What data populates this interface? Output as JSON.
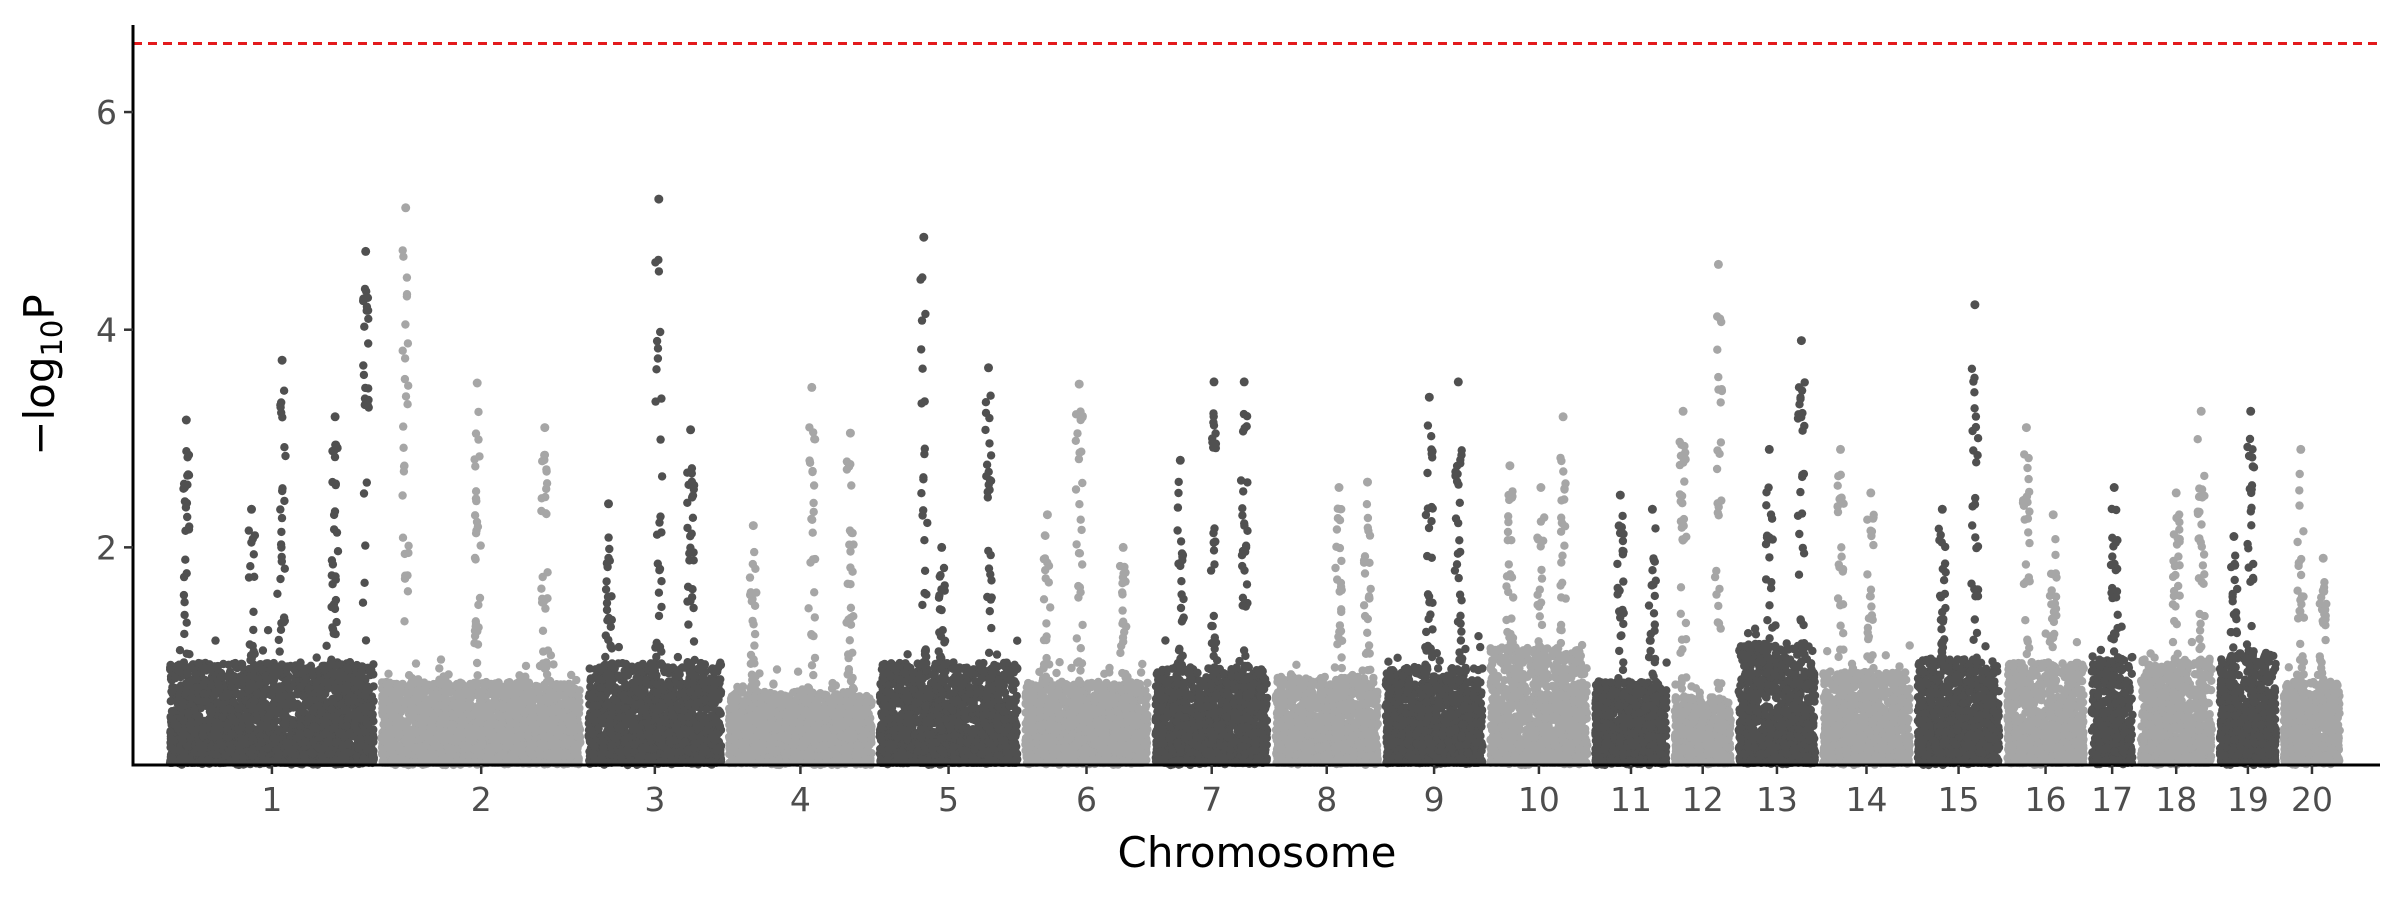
{
  "chart_data": {
    "type": "scatter",
    "subtype": "manhattan",
    "title": "",
    "xlabel": "Chromosome",
    "ylabel": {
      "prefix": "−log",
      "subscript": "10",
      "suffix": "P"
    },
    "ylim": [
      0,
      6.8
    ],
    "yticks": [
      2,
      4,
      6
    ],
    "threshold": {
      "value": 6.63,
      "color": "#e31a1c",
      "style": "dashed"
    },
    "colors": {
      "odd": "#505050",
      "even": "#a6a6a6"
    },
    "grid": false,
    "legend": "none",
    "chromosomes": [
      {
        "label": "1",
        "size": 2.0,
        "base": 1.05,
        "peaks": [
          {
            "pos": 0.96,
            "max": 4.72
          },
          {
            "pos": 0.81,
            "max": 3.2
          },
          {
            "pos": 0.4,
            "max": 2.35
          },
          {
            "pos": 0.55,
            "max": 3.72
          },
          {
            "pos": 0.08,
            "max": 3.17
          }
        ]
      },
      {
        "label": "2",
        "size": 1.95,
        "base": 0.85,
        "peaks": [
          {
            "pos": 0.12,
            "max": 5.12
          },
          {
            "pos": 0.48,
            "max": 3.51
          },
          {
            "pos": 0.82,
            "max": 3.1
          }
        ]
      },
      {
        "label": "3",
        "size": 1.3,
        "base": 1.05,
        "peaks": [
          {
            "pos": 0.53,
            "max": 5.2
          },
          {
            "pos": 0.77,
            "max": 3.08
          },
          {
            "pos": 0.15,
            "max": 2.4
          }
        ]
      },
      {
        "label": "4",
        "size": 1.4,
        "base": 0.75,
        "peaks": [
          {
            "pos": 0.58,
            "max": 3.47
          },
          {
            "pos": 0.17,
            "max": 2.2
          },
          {
            "pos": 0.85,
            "max": 3.05
          }
        ]
      },
      {
        "label": "5",
        "size": 1.35,
        "base": 1.05,
        "peaks": [
          {
            "pos": 0.32,
            "max": 4.85
          },
          {
            "pos": 0.79,
            "max": 3.65
          },
          {
            "pos": 0.45,
            "max": 2.0
          }
        ]
      },
      {
        "label": "6",
        "size": 1.2,
        "base": 0.85,
        "peaks": [
          {
            "pos": 0.44,
            "max": 3.5
          },
          {
            "pos": 0.18,
            "max": 2.3
          },
          {
            "pos": 0.8,
            "max": 2.0
          }
        ]
      },
      {
        "label": "7",
        "size": 1.1,
        "base": 1.0,
        "peaks": [
          {
            "pos": 0.79,
            "max": 3.52
          },
          {
            "pos": 0.52,
            "max": 3.52
          },
          {
            "pos": 0.22,
            "max": 2.8
          }
        ]
      },
      {
        "label": "8",
        "size": 1.0,
        "base": 0.9,
        "peaks": [
          {
            "pos": 0.62,
            "max": 2.55
          },
          {
            "pos": 0.9,
            "max": 2.6
          }
        ]
      },
      {
        "label": "9",
        "size": 0.95,
        "base": 1.0,
        "peaks": [
          {
            "pos": 0.75,
            "max": 3.52
          },
          {
            "pos": 0.45,
            "max": 3.38
          }
        ]
      },
      {
        "label": "10",
        "size": 0.95,
        "base": 1.2,
        "peaks": [
          {
            "pos": 0.75,
            "max": 3.2
          },
          {
            "pos": 0.52,
            "max": 2.55
          },
          {
            "pos": 0.2,
            "max": 2.75
          }
        ]
      },
      {
        "label": "11",
        "size": 0.7,
        "base": 0.85,
        "peaks": [
          {
            "pos": 0.8,
            "max": 2.35
          },
          {
            "pos": 0.35,
            "max": 2.48
          }
        ]
      },
      {
        "label": "12",
        "size": 0.55,
        "base": 0.7,
        "peaks": [
          {
            "pos": 0.78,
            "max": 4.6
          },
          {
            "pos": 0.15,
            "max": 3.25
          }
        ]
      },
      {
        "label": "13",
        "size": 0.75,
        "base": 1.25,
        "peaks": [
          {
            "pos": 0.82,
            "max": 3.9
          },
          {
            "pos": 0.4,
            "max": 2.9
          }
        ]
      },
      {
        "label": "14",
        "size": 0.85,
        "base": 0.95,
        "peaks": [
          {
            "pos": 0.2,
            "max": 2.9
          },
          {
            "pos": 0.55,
            "max": 2.5
          }
        ]
      },
      {
        "label": "15",
        "size": 0.8,
        "base": 1.1,
        "peaks": [
          {
            "pos": 0.7,
            "max": 4.23
          },
          {
            "pos": 0.3,
            "max": 2.35
          }
        ]
      },
      {
        "label": "16",
        "size": 0.75,
        "base": 1.05,
        "peaks": [
          {
            "pos": 0.25,
            "max": 3.1
          },
          {
            "pos": 0.6,
            "max": 2.3
          }
        ]
      },
      {
        "label": "17",
        "size": 0.4,
        "base": 1.1,
        "peaks": [
          {
            "pos": 0.55,
            "max": 2.55
          }
        ]
      },
      {
        "label": "18",
        "size": 0.7,
        "base": 1.1,
        "peaks": [
          {
            "pos": 0.5,
            "max": 2.5
          },
          {
            "pos": 0.85,
            "max": 3.25
          }
        ]
      },
      {
        "label": "19",
        "size": 0.55,
        "base": 1.15,
        "peaks": [
          {
            "pos": 0.55,
            "max": 3.25
          },
          {
            "pos": 0.25,
            "max": 2.1
          }
        ]
      },
      {
        "label": "20",
        "size": 0.55,
        "base": 0.85,
        "peaks": [
          {
            "pos": 0.3,
            "max": 2.9
          },
          {
            "pos": 0.7,
            "max": 1.9
          }
        ]
      }
    ]
  }
}
